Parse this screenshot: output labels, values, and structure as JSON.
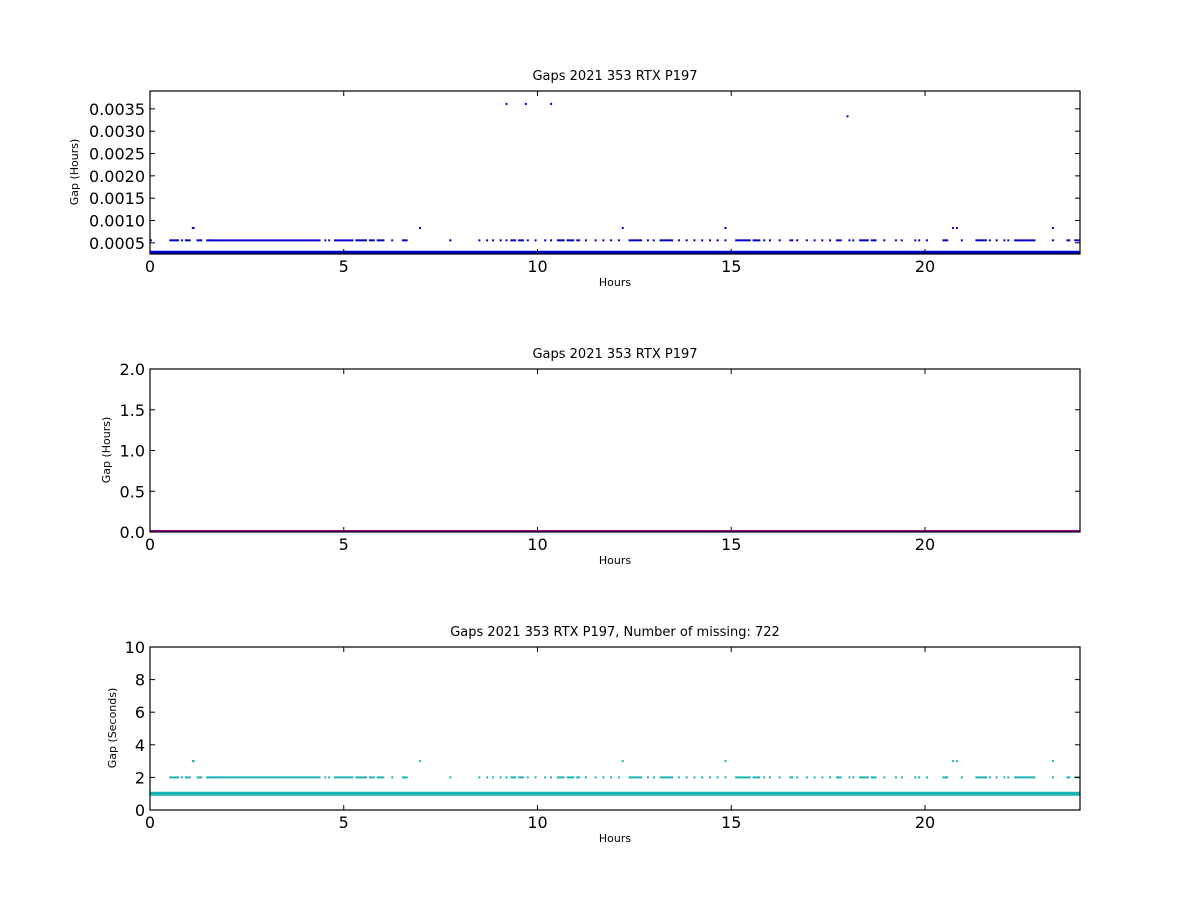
{
  "colors": {
    "background": "#ffffff",
    "axes": "#000000"
  },
  "chart_data": [
    {
      "type": "scatter",
      "title": "Gaps 2021 353 RTX  P197",
      "xlabel": "Hours",
      "ylabel": "Gap (Hours)",
      "xlim": [
        0,
        24
      ],
      "ylim": [
        0.00025,
        0.0039
      ],
      "xticks": [
        0,
        5,
        10,
        15,
        20
      ],
      "yticks": [
        0.0005,
        0.001,
        0.0015,
        0.002,
        0.0025,
        0.003,
        0.0035
      ],
      "ytick_labels": [
        "0.0005",
        "0.0010",
        "0.0015",
        "0.0020",
        "0.0025",
        "0.0030",
        "0.0035"
      ],
      "grid": false,
      "series": [
        {
          "color": "#0000cc",
          "baseline": {
            "y": 0.000278,
            "x_range": [
              0,
              24
            ]
          },
          "segments": [
            {
              "y": 0.000556,
              "ranges": [
                [
                  0,
                  0.05
                ],
                [
                  0.5,
                  0.75
                ],
                [
                  0.8,
                  0.85
                ],
                [
                  0.9,
                  1.05
                ],
                [
                  1.2,
                  1.35
                ],
                [
                  1.45,
                  4.4
                ],
                [
                  4.5,
                  4.55
                ],
                [
                  4.6,
                  4.65
                ],
                [
                  4.75,
                  5.25
                ],
                [
                  5.3,
                  5.6
                ],
                [
                  5.65,
                  5.8
                ],
                [
                  5.85,
                  6.05
                ],
                [
                  6.5,
                  6.65
                ],
                [
                  9.3,
                  9.45
                ],
                [
                  9.5,
                  9.65
                ],
                [
                  10.5,
                  10.7
                ],
                [
                  10.75,
                  10.95
                ],
                [
                  11.0,
                  11.1
                ],
                [
                  12.35,
                  12.7
                ],
                [
                  13.15,
                  13.5
                ],
                [
                  15.1,
                  15.5
                ],
                [
                  15.55,
                  15.75
                ],
                [
                  16.5,
                  16.6
                ],
                [
                  17.7,
                  17.85
                ],
                [
                  18.3,
                  18.55
                ],
                [
                  18.6,
                  18.75
                ],
                [
                  20.45,
                  20.6
                ],
                [
                  21.3,
                  21.6
                ],
                [
                  21.65,
                  21.7
                ],
                [
                  22.3,
                  22.85
                ],
                [
                  23.65,
                  23.75
                ],
                [
                  23.85,
                  24.0
                ]
              ]
            },
            {
              "y": 0.000833,
              "ranges": [
                [
                  1.08,
                  1.15
                ],
                [
                  20.7,
                  20.75
                ],
                [
                  20.8,
                  20.85
                ]
              ]
            }
          ],
          "points": [
            {
              "x": 1.55,
              "y": 0.000556
            },
            {
              "x": 6.25,
              "y": 0.000556
            },
            {
              "x": 7.75,
              "y": 0.000556
            },
            {
              "x": 8.5,
              "y": 0.000556
            },
            {
              "x": 8.7,
              "y": 0.000556
            },
            {
              "x": 8.85,
              "y": 0.000556
            },
            {
              "x": 9.05,
              "y": 0.000556
            },
            {
              "x": 9.2,
              "y": 0.000556
            },
            {
              "x": 9.75,
              "y": 0.000556
            },
            {
              "x": 9.95,
              "y": 0.000556
            },
            {
              "x": 10.2,
              "y": 0.000556
            },
            {
              "x": 10.35,
              "y": 0.000556
            },
            {
              "x": 11.25,
              "y": 0.000556
            },
            {
              "x": 11.5,
              "y": 0.000556
            },
            {
              "x": 11.7,
              "y": 0.000556
            },
            {
              "x": 11.9,
              "y": 0.000556
            },
            {
              "x": 12.1,
              "y": 0.000556
            },
            {
              "x": 12.85,
              "y": 0.000556
            },
            {
              "x": 13.0,
              "y": 0.000556
            },
            {
              "x": 13.65,
              "y": 0.000556
            },
            {
              "x": 13.85,
              "y": 0.000556
            },
            {
              "x": 14.05,
              "y": 0.000556
            },
            {
              "x": 14.25,
              "y": 0.000556
            },
            {
              "x": 14.45,
              "y": 0.000556
            },
            {
              "x": 14.65,
              "y": 0.000556
            },
            {
              "x": 14.85,
              "y": 0.000556
            },
            {
              "x": 15.85,
              "y": 0.000556
            },
            {
              "x": 16.0,
              "y": 0.000556
            },
            {
              "x": 16.25,
              "y": 0.000556
            },
            {
              "x": 16.7,
              "y": 0.000556
            },
            {
              "x": 16.95,
              "y": 0.000556
            },
            {
              "x": 17.15,
              "y": 0.000556
            },
            {
              "x": 17.35,
              "y": 0.000556
            },
            {
              "x": 17.55,
              "y": 0.000556
            },
            {
              "x": 18.05,
              "y": 0.000556
            },
            {
              "x": 18.15,
              "y": 0.000556
            },
            {
              "x": 18.95,
              "y": 0.000556
            },
            {
              "x": 19.25,
              "y": 0.000556
            },
            {
              "x": 19.4,
              "y": 0.000556
            },
            {
              "x": 19.75,
              "y": 0.000556
            },
            {
              "x": 19.85,
              "y": 0.000556
            },
            {
              "x": 20.05,
              "y": 0.000556
            },
            {
              "x": 20.95,
              "y": 0.000556
            },
            {
              "x": 21.85,
              "y": 0.000556
            },
            {
              "x": 22.05,
              "y": 0.000556
            },
            {
              "x": 22.15,
              "y": 0.000556
            },
            {
              "x": 23.3,
              "y": 0.000556
            },
            {
              "x": 6.97,
              "y": 0.000833
            },
            {
              "x": 12.2,
              "y": 0.000833
            },
            {
              "x": 14.85,
              "y": 0.000833
            },
            {
              "x": 23.3,
              "y": 0.000833
            },
            {
              "x": 9.2,
              "y": 0.003611
            },
            {
              "x": 9.7,
              "y": 0.003611
            },
            {
              "x": 10.35,
              "y": 0.003611
            },
            {
              "x": 18.0,
              "y": 0.003333
            }
          ]
        }
      ]
    },
    {
      "type": "scatter",
      "title": "Gaps 2021 353 RTX  P197",
      "xlabel": "Hours",
      "ylabel": "Gap (Hours)",
      "xlim": [
        0,
        24
      ],
      "ylim": [
        0,
        2.0
      ],
      "xticks": [
        0,
        5,
        10,
        15,
        20
      ],
      "yticks": [
        0,
        0.5,
        1.0,
        1.5,
        2.0
      ],
      "ytick_labels": [
        "0.0",
        "0.5",
        "1.0",
        "1.5",
        "2.0"
      ],
      "grid": false,
      "series": [
        {
          "color": "#990099",
          "baseline": {
            "y": 0.0,
            "x_range": [
              0,
              24
            ]
          },
          "segments": [],
          "points": []
        }
      ]
    },
    {
      "type": "scatter",
      "title": "Gaps 2021 353 RTX  P197, Number of missing: 722",
      "xlabel": "Hours",
      "ylabel": "Gap (Seconds)",
      "xlim": [
        0,
        24
      ],
      "ylim": [
        0,
        10
      ],
      "xticks": [
        0,
        5,
        10,
        15,
        20
      ],
      "yticks": [
        0,
        2,
        4,
        6,
        8,
        10
      ],
      "ytick_labels": [
        "0",
        "2",
        "4",
        "6",
        "8",
        "10"
      ],
      "grid": false,
      "series": [
        {
          "color": "#1ab3b3",
          "baseline": {
            "y": 1.0,
            "x_range": [
              0,
              24
            ]
          },
          "segments": [
            {
              "y": 2.0,
              "ranges": [
                [
                  0.5,
                  0.75
                ],
                [
                  0.8,
                  0.85
                ],
                [
                  0.9,
                  1.05
                ],
                [
                  1.2,
                  1.35
                ],
                [
                  1.45,
                  4.4
                ],
                [
                  4.5,
                  4.55
                ],
                [
                  4.6,
                  4.65
                ],
                [
                  4.75,
                  5.25
                ],
                [
                  5.3,
                  5.6
                ],
                [
                  5.65,
                  5.8
                ],
                [
                  5.85,
                  6.05
                ],
                [
                  6.5,
                  6.65
                ],
                [
                  9.3,
                  9.45
                ],
                [
                  9.5,
                  9.65
                ],
                [
                  10.5,
                  10.7
                ],
                [
                  10.75,
                  10.95
                ],
                [
                  11.0,
                  11.1
                ],
                [
                  12.35,
                  12.7
                ],
                [
                  13.15,
                  13.5
                ],
                [
                  15.1,
                  15.5
                ],
                [
                  15.55,
                  15.75
                ],
                [
                  16.5,
                  16.6
                ],
                [
                  17.7,
                  17.85
                ],
                [
                  18.3,
                  18.55
                ],
                [
                  18.6,
                  18.75
                ],
                [
                  20.45,
                  20.6
                ],
                [
                  21.3,
                  21.6
                ],
                [
                  21.65,
                  21.7
                ],
                [
                  22.3,
                  22.85
                ],
                [
                  23.65,
                  23.75
                ],
                [
                  23.85,
                  24.0
                ]
              ]
            },
            {
              "y": 3.0,
              "ranges": [
                [
                  1.08,
                  1.15
                ],
                [
                  20.7,
                  20.75
                ],
                [
                  20.8,
                  20.85
                ]
              ]
            }
          ],
          "points": [
            {
              "x": 1.55,
              "y": 2.0
            },
            {
              "x": 6.25,
              "y": 2.0
            },
            {
              "x": 7.75,
              "y": 2.0
            },
            {
              "x": 8.5,
              "y": 2.0
            },
            {
              "x": 8.7,
              "y": 2.0
            },
            {
              "x": 8.85,
              "y": 2.0
            },
            {
              "x": 9.05,
              "y": 2.0
            },
            {
              "x": 9.2,
              "y": 2.0
            },
            {
              "x": 9.75,
              "y": 2.0
            },
            {
              "x": 9.95,
              "y": 2.0
            },
            {
              "x": 10.2,
              "y": 2.0
            },
            {
              "x": 10.35,
              "y": 2.0
            },
            {
              "x": 11.25,
              "y": 2.0
            },
            {
              "x": 11.5,
              "y": 2.0
            },
            {
              "x": 11.7,
              "y": 2.0
            },
            {
              "x": 11.9,
              "y": 2.0
            },
            {
              "x": 12.1,
              "y": 2.0
            },
            {
              "x": 12.85,
              "y": 2.0
            },
            {
              "x": 13.0,
              "y": 2.0
            },
            {
              "x": 13.65,
              "y": 2.0
            },
            {
              "x": 13.85,
              "y": 2.0
            },
            {
              "x": 14.05,
              "y": 2.0
            },
            {
              "x": 14.25,
              "y": 2.0
            },
            {
              "x": 14.45,
              "y": 2.0
            },
            {
              "x": 14.65,
              "y": 2.0
            },
            {
              "x": 14.85,
              "y": 2.0
            },
            {
              "x": 15.85,
              "y": 2.0
            },
            {
              "x": 16.0,
              "y": 2.0
            },
            {
              "x": 16.25,
              "y": 2.0
            },
            {
              "x": 16.7,
              "y": 2.0
            },
            {
              "x": 16.95,
              "y": 2.0
            },
            {
              "x": 17.15,
              "y": 2.0
            },
            {
              "x": 17.35,
              "y": 2.0
            },
            {
              "x": 17.55,
              "y": 2.0
            },
            {
              "x": 18.05,
              "y": 2.0
            },
            {
              "x": 18.15,
              "y": 2.0
            },
            {
              "x": 18.95,
              "y": 2.0
            },
            {
              "x": 19.25,
              "y": 2.0
            },
            {
              "x": 19.4,
              "y": 2.0
            },
            {
              "x": 19.75,
              "y": 2.0
            },
            {
              "x": 19.85,
              "y": 2.0
            },
            {
              "x": 20.05,
              "y": 2.0
            },
            {
              "x": 20.95,
              "y": 2.0
            },
            {
              "x": 21.85,
              "y": 2.0
            },
            {
              "x": 22.05,
              "y": 2.0
            },
            {
              "x": 22.15,
              "y": 2.0
            },
            {
              "x": 23.3,
              "y": 2.0
            },
            {
              "x": 6.97,
              "y": 3.0
            },
            {
              "x": 12.2,
              "y": 3.0
            },
            {
              "x": 14.85,
              "y": 3.0
            },
            {
              "x": 23.3,
              "y": 3.0
            }
          ]
        }
      ]
    }
  ]
}
